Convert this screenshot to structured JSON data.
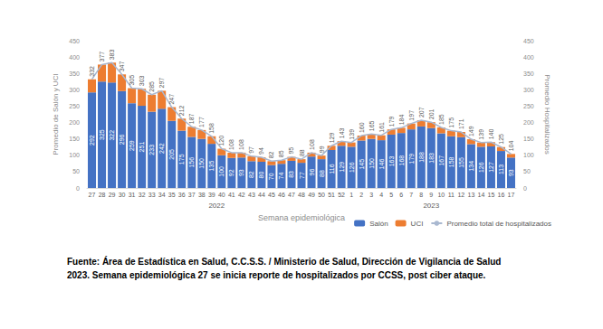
{
  "chart_data": {
    "type": "bar",
    "stacked": true,
    "categories": [
      "27",
      "28",
      "29",
      "30",
      "31",
      "32",
      "33",
      "34",
      "35",
      "36",
      "37",
      "38",
      "39",
      "40",
      "41",
      "42",
      "43",
      "44",
      "45",
      "46",
      "47",
      "48",
      "49",
      "50",
      "51",
      "52",
      "1",
      "2",
      "3",
      "4",
      "5",
      "6",
      "7",
      "8",
      "9",
      "10",
      "11",
      "12",
      "13",
      "14",
      "15",
      "16",
      "17"
    ],
    "groups": [
      {
        "label": "2022",
        "from": "27",
        "to": "52"
      },
      {
        "label": "2023",
        "from": "1",
        "to": "17"
      }
    ],
    "x_label": "Semana epidemiológica",
    "y_label": "Promedio de Salón y UCI",
    "y2_label": "Promedio Hospitalizados",
    "ylim": [
      0,
      450
    ],
    "yticks": [
      0,
      50,
      100,
      150,
      200,
      250,
      300,
      350,
      400,
      450
    ],
    "y2lim": [
      0,
      450
    ],
    "y2ticks": [
      0,
      50,
      100,
      150,
      200,
      250,
      300,
      350,
      400,
      450
    ],
    "grid": false,
    "legend": "bottom-right",
    "series": [
      {
        "name": "Salón",
        "type": "bar",
        "color": "#4472c4",
        "data_labels": true,
        "values": [
          292,
          325,
          322,
          296,
          259,
          251,
          233,
          242,
          205,
          175,
          156,
          150,
          135,
          100,
          92,
          93,
          82,
          80,
          70,
          74,
          83,
          77,
          96,
          88,
          116,
          129,
          126,
          145,
          150,
          146,
          163,
          168,
          179,
          188,
          183,
          167,
          158,
          155,
          134,
          126,
          127,
          113,
          93
        ]
      },
      {
        "name": "UCI",
        "type": "bar",
        "color": "#ed7d31",
        "data_labels": false,
        "values": [
          40,
          52,
          61,
          51,
          46,
          52,
          52,
          55,
          42,
          37,
          31,
          27,
          23,
          20,
          16,
          15,
          15,
          14,
          12,
          11,
          12,
          11,
          12,
          11,
          13,
          14,
          13,
          15,
          15,
          15,
          16,
          16,
          18,
          19,
          18,
          18,
          17,
          16,
          15,
          13,
          13,
          12,
          11
        ]
      },
      {
        "name": "Promedio total de hospitalizados",
        "type": "line",
        "axis": "y2",
        "color": "#a9b8d0",
        "data_labels": true,
        "values": [
          332,
          377,
          383,
          347,
          305,
          303,
          285,
          297,
          247,
          212,
          187,
          177,
          158,
          120,
          108,
          108,
          97,
          94,
          82,
          85,
          95,
          88,
          108,
          99,
          129,
          143,
          139,
          160,
          165,
          161,
          179,
          184,
          197,
          207,
          201,
          185,
          175,
          171,
          149,
          139,
          140,
          125,
          104
        ]
      }
    ],
    "source": [
      "Fuente: Área de Estadística en Salud, C.C.S.S. / Ministerio de Salud, Dirección de Vigilancia de Salud",
      "2023. Semana epidemiológica 27 se inicia reporte de hospitalizados por CCSS, post ciber ataque."
    ]
  }
}
